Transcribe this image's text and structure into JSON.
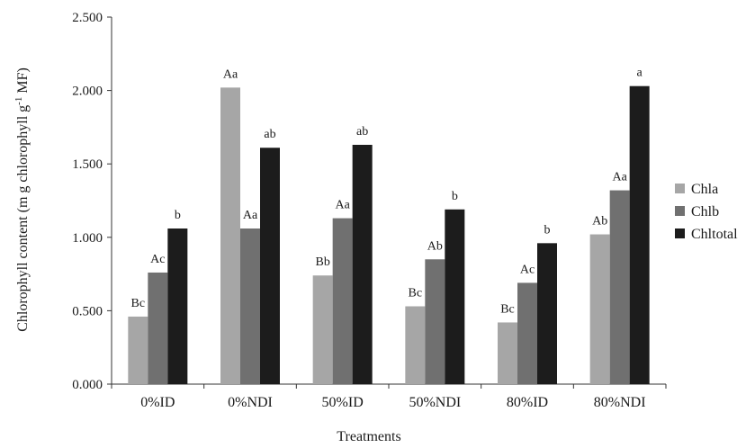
{
  "chart_data": {
    "type": "bar",
    "title": "",
    "xlabel": "Treatments",
    "ylabel": "Chlorophyll content (m g chlorophyll g",
    "ylabel_sup": "-1",
    "ylabel_end": " MF)",
    "ylim": [
      0,
      2.5
    ],
    "yticks": [
      0,
      0.5,
      1.0,
      1.5,
      2.0,
      2.5
    ],
    "ytick_labels": [
      "0.000",
      "0.500",
      "1.000",
      "1.500",
      "2.000",
      "2.500"
    ],
    "grid": false,
    "legend_position": "right",
    "categories": [
      "0%ID",
      "0%NDI",
      "50%ID",
      "50%NDI",
      "80%ID",
      "80%NDI"
    ],
    "series": [
      {
        "name": "Chla",
        "color": "#a6a6a6",
        "values": [
          0.46,
          2.02,
          0.74,
          0.53,
          0.42,
          1.02
        ],
        "labels": [
          "Bc",
          "Aa",
          "Bb",
          "Bc",
          "Bc",
          "Ab"
        ]
      },
      {
        "name": "Chlb",
        "color": "#707070",
        "values": [
          0.76,
          1.06,
          1.13,
          0.85,
          0.69,
          1.32
        ],
        "labels": [
          "Ac",
          "Aa",
          "Aa",
          "Ab",
          "Ac",
          "Aa"
        ]
      },
      {
        "name": "Chltotal",
        "color": "#1c1c1c",
        "values": [
          1.06,
          1.61,
          1.63,
          1.19,
          0.96,
          2.03
        ],
        "labels": [
          "b",
          "ab",
          "ab",
          "b",
          "b",
          "a"
        ]
      }
    ]
  }
}
